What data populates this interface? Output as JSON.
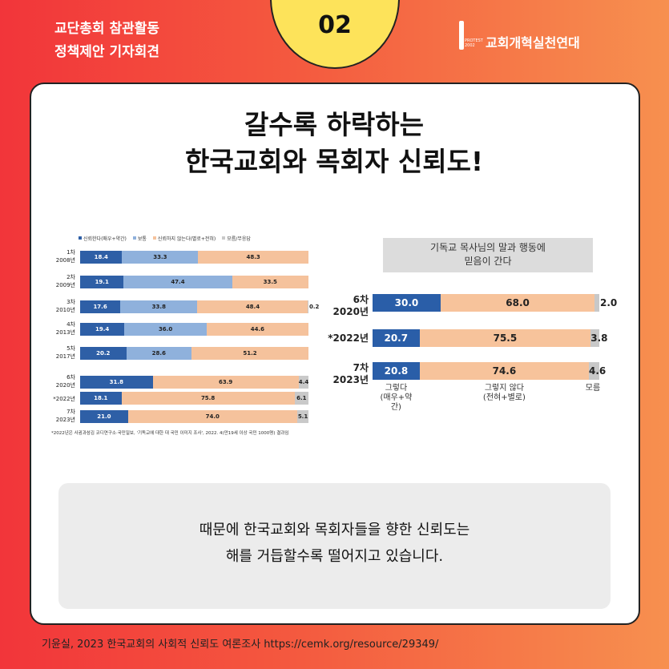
{
  "header": {
    "title": "교단총회 참관활동\n정책제안 기자회견",
    "badge": "02",
    "logo": "교회개혁실천연대",
    "logo_small": "PROTEST\n2002"
  },
  "title": "갈수록 하락하는\n한국교회와 목회자 신뢰도!",
  "chart_data": [
    {
      "type": "bar",
      "stacked": true,
      "orientation": "horizontal",
      "categories": [
        "1차\n2008년",
        "2차\n2009년",
        "3차\n2010년",
        "4차\n2013년",
        "5차\n2017년",
        "6차\n2020년",
        "*2022년",
        "7차\n2023년"
      ],
      "xlim": [
        0,
        100
      ],
      "series": [
        {
          "name": "신뢰한다(매우+약간)",
          "color": "#2e5fa6",
          "values": [
            18.4,
            19.1,
            17.6,
            19.4,
            20.2,
            31.8,
            18.1,
            21.0
          ],
          "value_labels": [
            "18.4",
            "19.1",
            "17.6",
            "19.4",
            "20.2",
            "31.8",
            "18.1",
            "21.0"
          ]
        },
        {
          "name": "보통",
          "color": "#8fb1dc",
          "values": [
            33.3,
            47.4,
            33.8,
            36.0,
            28.6,
            null,
            null,
            null
          ],
          "value_labels": [
            "33.3",
            "47.4",
            "33.8",
            "36.0",
            "28.6",
            null,
            null,
            null
          ]
        },
        {
          "name": "신뢰하지 않는다(별로+전혀)",
          "color": "#f5c29c",
          "values": [
            48.3,
            33.5,
            48.4,
            44.6,
            51.2,
            63.9,
            75.8,
            74.0
          ],
          "value_labels": [
            "48.3",
            "33.5",
            "48.4",
            "44.6",
            "51.2",
            "63.9",
            "75.8",
            "74.0"
          ]
        },
        {
          "name": "모름/무응답",
          "color": "#c9c9c9",
          "values": [
            null,
            null,
            0.2,
            null,
            null,
            4.4,
            6.1,
            5.1
          ],
          "value_labels": [
            null,
            null,
            "0.2",
            null,
            null,
            "4.4",
            "6.1",
            "5.1"
          ]
        }
      ],
      "footnote": "*2022년은 사귐과섬김 코디연구소·국민일보, '기독교에 대한 대 국민 이미지 조사', 2022. 4(만19세 이상 국민 1000명) 결과임"
    },
    {
      "type": "bar",
      "stacked": true,
      "orientation": "horizontal",
      "title": "기독교 목사님의 말과 행동에\n믿음이 간다",
      "categories": [
        "6차\n2020년",
        "*2022년",
        "7차\n2023년"
      ],
      "xlim": [
        0,
        100
      ],
      "series": [
        {
          "name": "그렇다\n(매우+약\n간)",
          "color": "#2a5ea8",
          "values": [
            30.0,
            20.7,
            20.8
          ],
          "value_labels": [
            "30.0",
            "20.7",
            "20.8"
          ]
        },
        {
          "name": "그렇지 않다\n(전혀+별로)",
          "color": "#f7c39b",
          "values": [
            68.0,
            75.5,
            74.6
          ],
          "value_labels": [
            "68.0",
            "75.5",
            "74.6"
          ]
        },
        {
          "name": "모름",
          "color": "#c8c8c8",
          "values": [
            2.0,
            3.8,
            4.6
          ],
          "value_labels": [
            "2.0",
            "3.8",
            "4.6"
          ]
        }
      ]
    }
  ],
  "caption": "때문에 한국교회와 목회자들을 향한 신뢰도는\n해를 거듭할수록 떨어지고 있습니다.",
  "footer": "기윤실, 2023 한국교회의 사회적 신뢰도 여론조사  https://cemk.org/resource/29349/"
}
